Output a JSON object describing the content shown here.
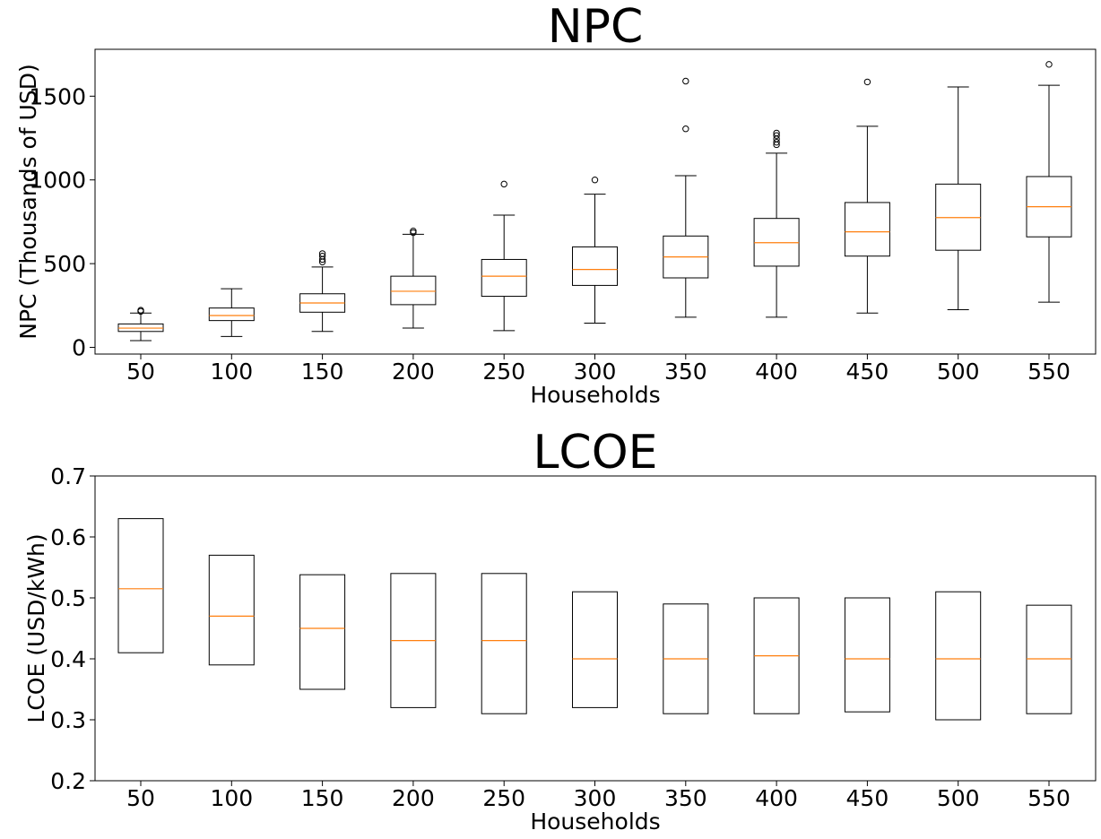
{
  "chart_data": [
    {
      "type": "boxplot",
      "title": "NPC",
      "xlabel": "Households",
      "ylabel": "NPC (Thousands of USD)",
      "ylim": [
        -40,
        1780
      ],
      "yticks": [
        0,
        500,
        1000,
        1500
      ],
      "grid": false,
      "median_color": "#ff7f0e",
      "categories": [
        "50",
        "100",
        "150",
        "200",
        "250",
        "300",
        "350",
        "400",
        "450",
        "500",
        "550"
      ],
      "boxes": [
        {
          "whisker_low": 40,
          "q1": 95,
          "median": 115,
          "q3": 140,
          "whisker_high": 205,
          "outliers": [
            215,
            222
          ]
        },
        {
          "whisker_low": 65,
          "q1": 160,
          "median": 190,
          "q3": 235,
          "whisker_high": 350,
          "outliers": []
        },
        {
          "whisker_low": 95,
          "q1": 210,
          "median": 265,
          "q3": 320,
          "whisker_high": 480,
          "outliers": [
            510,
            525,
            545,
            560
          ]
        },
        {
          "whisker_low": 115,
          "q1": 255,
          "median": 335,
          "q3": 425,
          "whisker_high": 675,
          "outliers": [
            685,
            695
          ]
        },
        {
          "whisker_low": 100,
          "q1": 305,
          "median": 425,
          "q3": 525,
          "whisker_high": 790,
          "outliers": [
            975
          ]
        },
        {
          "whisker_low": 145,
          "q1": 370,
          "median": 465,
          "q3": 600,
          "whisker_high": 915,
          "outliers": [
            1000
          ]
        },
        {
          "whisker_low": 180,
          "q1": 415,
          "median": 540,
          "q3": 665,
          "whisker_high": 1025,
          "outliers": [
            1305,
            1590
          ]
        },
        {
          "whisker_low": 180,
          "q1": 485,
          "median": 625,
          "q3": 770,
          "whisker_high": 1160,
          "outliers": [
            1210,
            1225,
            1245,
            1265,
            1280
          ]
        },
        {
          "whisker_low": 205,
          "q1": 545,
          "median": 690,
          "q3": 865,
          "whisker_high": 1320,
          "outliers": [
            1585
          ]
        },
        {
          "whisker_low": 225,
          "q1": 580,
          "median": 775,
          "q3": 975,
          "whisker_high": 1555,
          "outliers": []
        },
        {
          "whisker_low": 270,
          "q1": 660,
          "median": 840,
          "q3": 1020,
          "whisker_high": 1565,
          "outliers": [
            1690
          ]
        }
      ]
    },
    {
      "type": "boxplot",
      "title": "LCOE",
      "xlabel": "Households",
      "ylabel": "LCOE (USD/kWh)",
      "ylim": [
        0.2,
        0.7
      ],
      "yticks": [
        0.2,
        0.3,
        0.4,
        0.5,
        0.6,
        0.7
      ],
      "grid": false,
      "median_color": "#ff7f0e",
      "categories": [
        "50",
        "100",
        "150",
        "200",
        "250",
        "300",
        "350",
        "400",
        "450",
        "500",
        "550"
      ],
      "boxes": [
        {
          "q1": 0.41,
          "median": 0.515,
          "q3": 0.63
        },
        {
          "q1": 0.39,
          "median": 0.47,
          "q3": 0.57
        },
        {
          "q1": 0.35,
          "median": 0.45,
          "q3": 0.538
        },
        {
          "q1": 0.32,
          "median": 0.43,
          "q3": 0.54
        },
        {
          "q1": 0.31,
          "median": 0.43,
          "q3": 0.54
        },
        {
          "q1": 0.32,
          "median": 0.4,
          "q3": 0.51
        },
        {
          "q1": 0.31,
          "median": 0.4,
          "q3": 0.49
        },
        {
          "q1": 0.31,
          "median": 0.405,
          "q3": 0.5
        },
        {
          "q1": 0.313,
          "median": 0.4,
          "q3": 0.5
        },
        {
          "q1": 0.3,
          "median": 0.4,
          "q3": 0.51
        },
        {
          "q1": 0.31,
          "median": 0.4,
          "q3": 0.488
        }
      ]
    }
  ]
}
